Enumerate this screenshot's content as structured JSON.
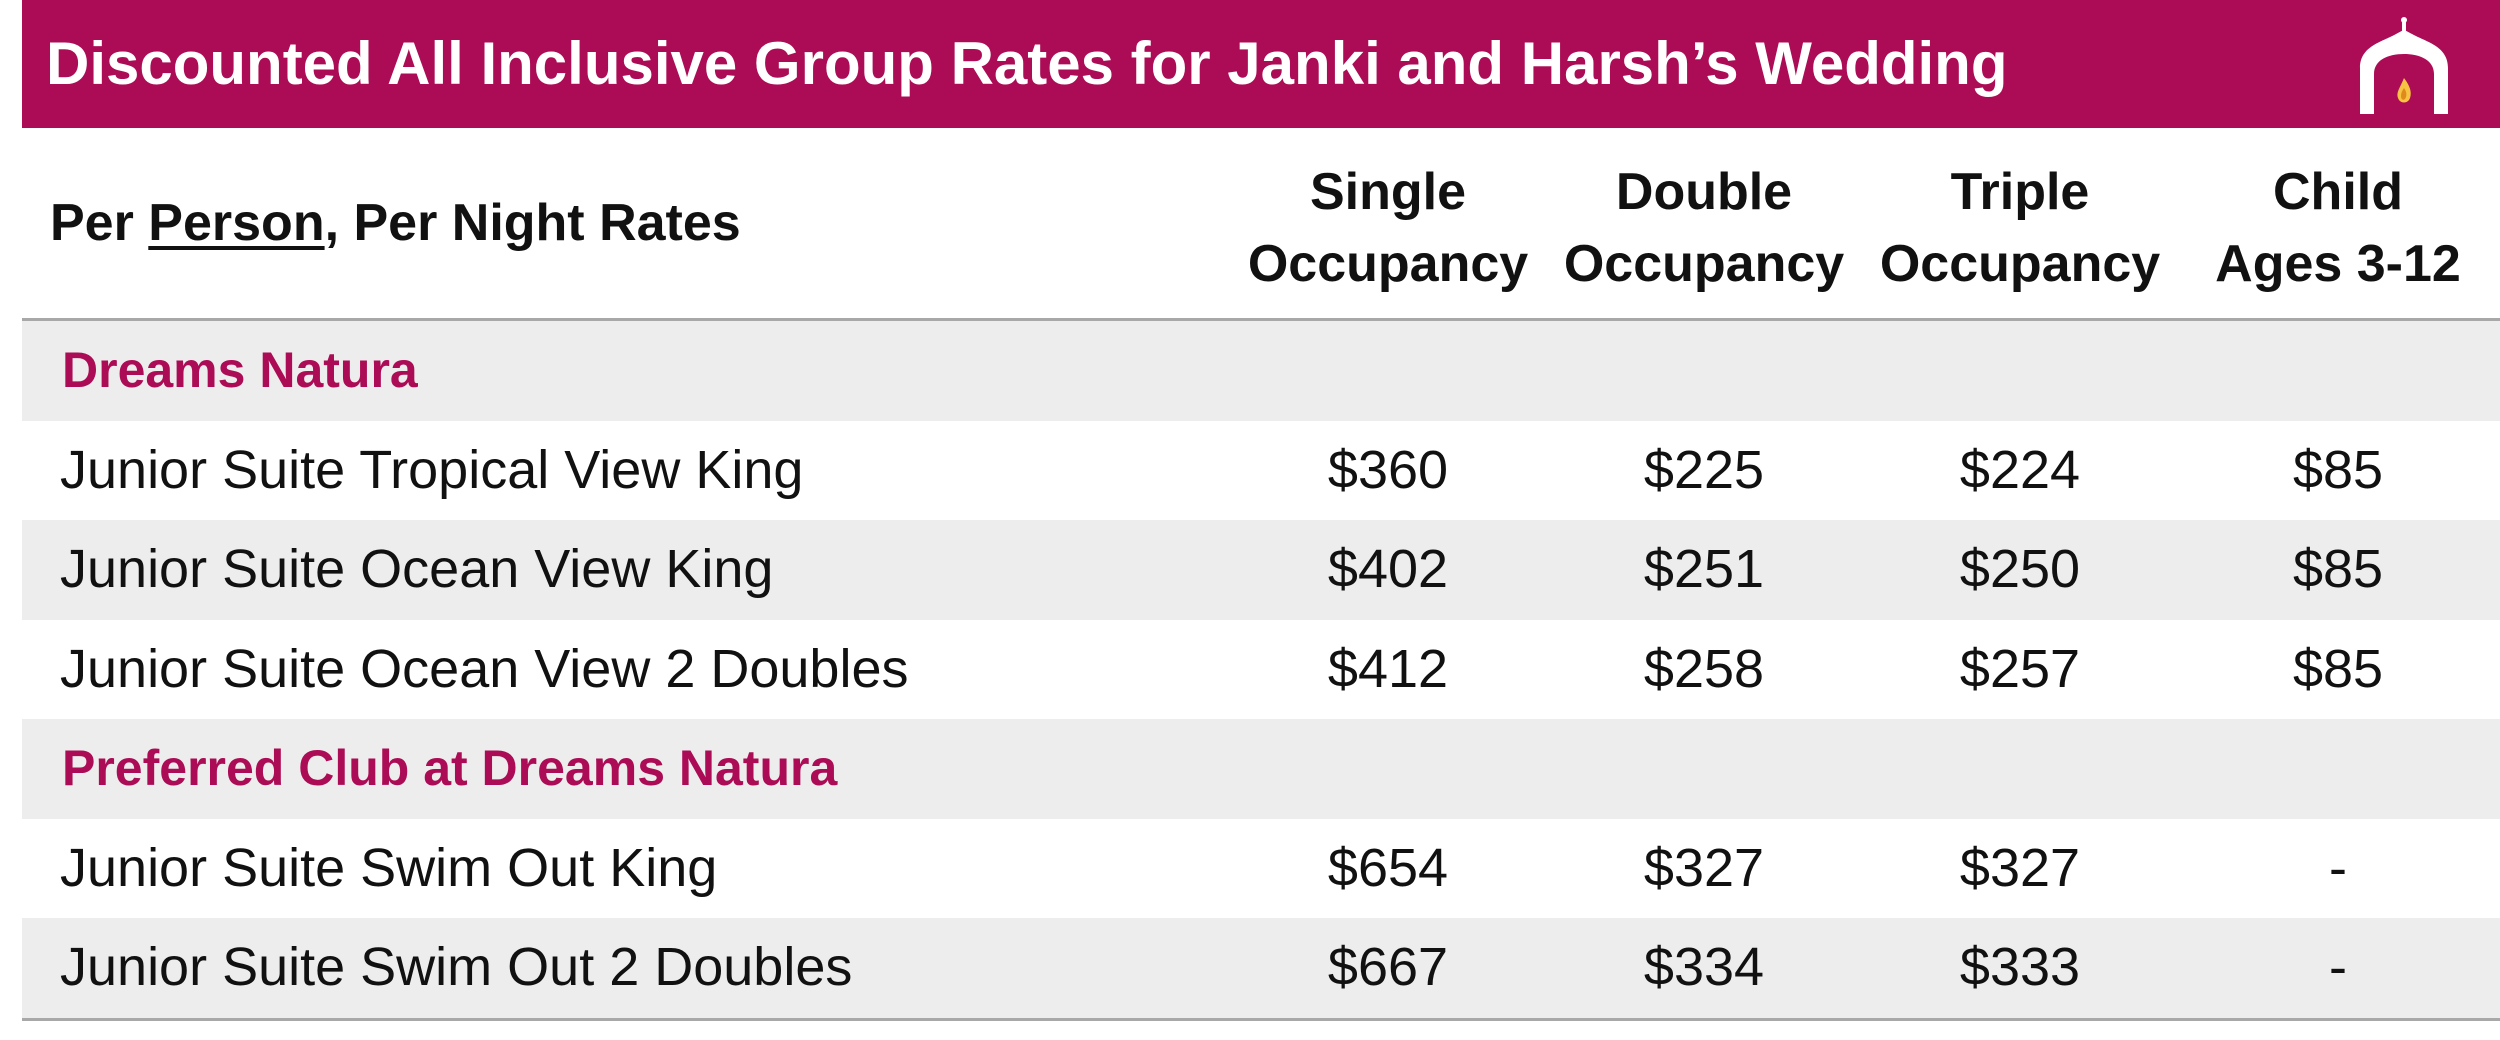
{
  "title": "Discounted All Inclusive Group Rates for Janki and Harsh’s Wedding",
  "logo": {
    "icon": "venue-arch-icon",
    "accent": "#ab0c55",
    "flame": "#f6c343"
  },
  "colors": {
    "brand": "#ab0c55",
    "shade": "#ededed",
    "rule": "#a8a8a8"
  },
  "table": {
    "header": {
      "label_prefix": "Per ",
      "label_underlined": "Person",
      "label_suffix": ", Per Night Rates",
      "columns": [
        {
          "line1": "Single",
          "line2": "Occupancy"
        },
        {
          "line1": "Double",
          "line2": "Occupancy"
        },
        {
          "line1": "Triple",
          "line2": "Occupancy"
        },
        {
          "line1": "Child",
          "line2": "Ages 3-12"
        }
      ]
    },
    "sections": [
      {
        "name": "Dreams Natura",
        "rooms": [
          {
            "name": "Junior Suite Tropical View King",
            "rates": [
              "$360",
              "$225",
              "$224",
              "$85"
            ]
          },
          {
            "name": "Junior Suite Ocean View King",
            "rates": [
              "$402",
              "$251",
              "$250",
              "$85"
            ]
          },
          {
            "name": "Junior Suite Ocean View 2 Doubles",
            "rates": [
              "$412",
              "$258",
              "$257",
              "$85"
            ]
          }
        ]
      },
      {
        "name": "Preferred Club at Dreams Natura",
        "rooms": [
          {
            "name": "Junior Suite Swim Out King",
            "rates": [
              "$654",
              "$327",
              "$327",
              "-"
            ]
          },
          {
            "name": "Junior Suite Swim Out 2 Doubles",
            "rates": [
              "$667",
              "$334",
              "$333",
              "-"
            ]
          }
        ]
      }
    ]
  }
}
